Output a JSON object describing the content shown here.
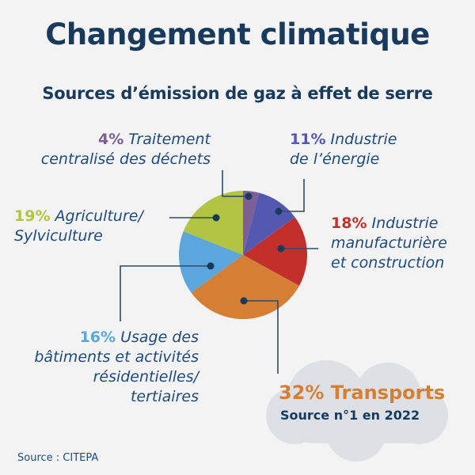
{
  "title": "Changement climatique",
  "subtitle": "Sources d’émission de gaz à effet de serre",
  "source": "Source : CITEPA",
  "chart_data": {
    "type": "pie",
    "start": "top, clockwise",
    "slices": [
      {
        "pct_label": "4%",
        "value": 4,
        "label_lines": [
          "Traitement",
          "centralisé des déchets"
        ],
        "color": "#7b5f95"
      },
      {
        "pct_label": "11%",
        "value": 11,
        "label_lines": [
          "Industrie",
          "de l’énergie"
        ],
        "color": "#5558b0"
      },
      {
        "pct_label": "18%",
        "value": 18,
        "label_lines": [
          "Industrie",
          "manufacturière",
          "et construction"
        ],
        "color": "#c3302c"
      },
      {
        "pct_label": "32%",
        "value": 32,
        "label_lines": [
          "Transports"
        ],
        "color": "#d47f33"
      },
      {
        "pct_label": "16%",
        "value": 16,
        "label_lines": [
          "Usage des",
          "bâtiments et activités",
          "résidentielles/",
          "tertiaires"
        ],
        "color": "#5aa6dd"
      },
      {
        "pct_label": "19%",
        "value": 19,
        "label_lines": [
          "Agriculture/",
          "Sylviculture"
        ],
        "color": "#b3c443"
      }
    ]
  },
  "callout": {
    "headline": "32% Transports",
    "note": "Source n°1 en 2022"
  },
  "colors": {
    "background": "#f3f3f4",
    "title": "#183a5c",
    "label": "#1f4b7c",
    "cloud": "#dde1e6",
    "leader": "#2d4a6a"
  }
}
